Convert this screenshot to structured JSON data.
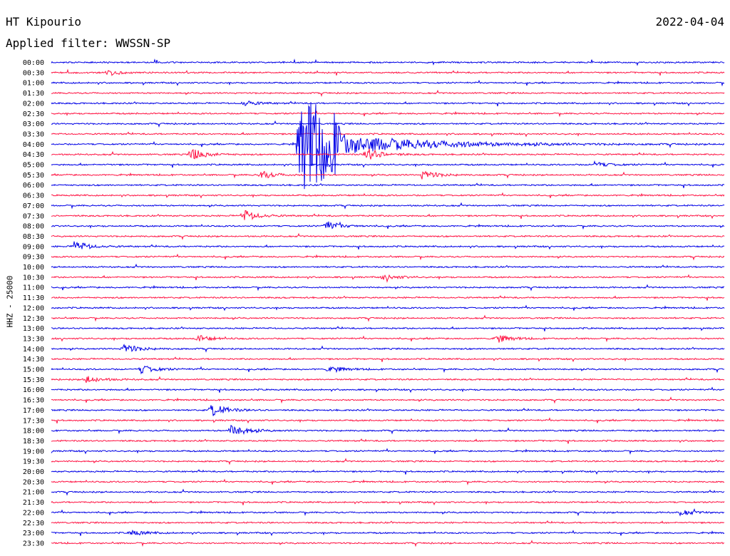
{
  "header": {
    "station": "HT Kipourio",
    "date": "2022-04-04",
    "filter": "Applied filter: WWSSN-SP"
  },
  "chart_data": {
    "type": "line",
    "title": "",
    "ylabel": "HHZ - 25000",
    "row_labels": [
      "00:00",
      "00:30",
      "01:00",
      "01:30",
      "02:00",
      "02:30",
      "03:00",
      "03:30",
      "04:00",
      "04:30",
      "05:00",
      "05:30",
      "06:00",
      "06:30",
      "07:00",
      "07:30",
      "08:00",
      "08:30",
      "09:00",
      "09:30",
      "10:00",
      "10:30",
      "11:00",
      "11:30",
      "12:00",
      "12:30",
      "13:00",
      "13:30",
      "14:00",
      "14:30",
      "15:00",
      "15:30",
      "16:00",
      "16:30",
      "17:00",
      "17:30",
      "18:00",
      "18:30",
      "19:00",
      "19:30",
      "20:00",
      "20:30",
      "21:00",
      "21:30",
      "22:00",
      "22:30",
      "23:00",
      "23:30"
    ],
    "trace_colors": [
      "#0000e6",
      "#ff1444"
    ],
    "x_range_minutes": [
      0,
      30
    ],
    "events": [
      {
        "row": 1,
        "minute": 2.5,
        "amp": 4
      },
      {
        "row": 4,
        "minute": 8.5,
        "amp": 4
      },
      {
        "row": 8,
        "minute": 11.0,
        "amp": 70
      },
      {
        "row": 9,
        "minute": 6.2,
        "amp": 9
      },
      {
        "row": 9,
        "minute": 14.0,
        "amp": 10
      },
      {
        "row": 10,
        "minute": 24.2,
        "amp": 4
      },
      {
        "row": 11,
        "minute": 9.3,
        "amp": 6
      },
      {
        "row": 11,
        "minute": 16.5,
        "amp": 7
      },
      {
        "row": 15,
        "minute": 8.5,
        "amp": 9
      },
      {
        "row": 16,
        "minute": 12.2,
        "amp": 7
      },
      {
        "row": 18,
        "minute": 1.0,
        "amp": 8
      },
      {
        "row": 21,
        "minute": 14.8,
        "amp": 4
      },
      {
        "row": 27,
        "minute": 6.5,
        "amp": 5
      },
      {
        "row": 27,
        "minute": 19.8,
        "amp": 6
      },
      {
        "row": 28,
        "minute": 3.2,
        "amp": 7
      },
      {
        "row": 30,
        "minute": 4.0,
        "amp": 6
      },
      {
        "row": 30,
        "minute": 12.3,
        "amp": 5
      },
      {
        "row": 31,
        "minute": 1.5,
        "amp": 6
      },
      {
        "row": 34,
        "minute": 7.1,
        "amp": 10
      },
      {
        "row": 36,
        "minute": 8.0,
        "amp": 10
      },
      {
        "row": 44,
        "minute": 28.0,
        "amp": 4
      },
      {
        "row": 46,
        "minute": 3.5,
        "amp": 4
      }
    ]
  }
}
